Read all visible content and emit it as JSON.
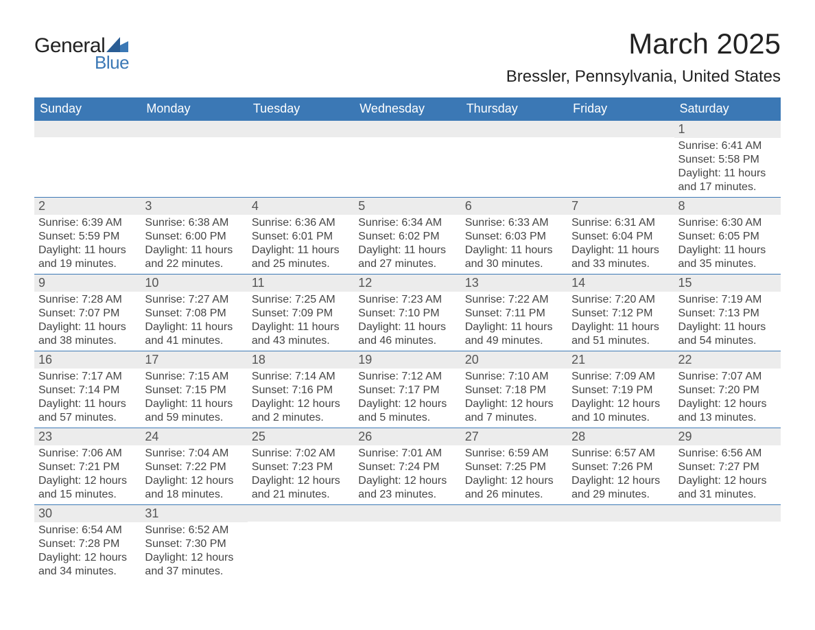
{
  "logo": {
    "main": "General",
    "sub": "Blue"
  },
  "title": "March 2025",
  "location": "Bressler, Pennsylvania, United States",
  "colors": {
    "header_bg": "#3b78b5",
    "header_text": "#ffffff",
    "strip_bg": "#ececec",
    "border": "#3b78b5",
    "body_text": "#444444",
    "logo_accent": "#3b78b5"
  },
  "weekdays": [
    "Sunday",
    "Monday",
    "Tuesday",
    "Wednesday",
    "Thursday",
    "Friday",
    "Saturday"
  ],
  "weeks": [
    [
      {
        "day": "",
        "sunrise": "",
        "sunset": "",
        "daylight": ""
      },
      {
        "day": "",
        "sunrise": "",
        "sunset": "",
        "daylight": ""
      },
      {
        "day": "",
        "sunrise": "",
        "sunset": "",
        "daylight": ""
      },
      {
        "day": "",
        "sunrise": "",
        "sunset": "",
        "daylight": ""
      },
      {
        "day": "",
        "sunrise": "",
        "sunset": "",
        "daylight": ""
      },
      {
        "day": "",
        "sunrise": "",
        "sunset": "",
        "daylight": ""
      },
      {
        "day": "1",
        "sunrise": "Sunrise: 6:41 AM",
        "sunset": "Sunset: 5:58 PM",
        "daylight": "Daylight: 11 hours and 17 minutes."
      }
    ],
    [
      {
        "day": "2",
        "sunrise": "Sunrise: 6:39 AM",
        "sunset": "Sunset: 5:59 PM",
        "daylight": "Daylight: 11 hours and 19 minutes."
      },
      {
        "day": "3",
        "sunrise": "Sunrise: 6:38 AM",
        "sunset": "Sunset: 6:00 PM",
        "daylight": "Daylight: 11 hours and 22 minutes."
      },
      {
        "day": "4",
        "sunrise": "Sunrise: 6:36 AM",
        "sunset": "Sunset: 6:01 PM",
        "daylight": "Daylight: 11 hours and 25 minutes."
      },
      {
        "day": "5",
        "sunrise": "Sunrise: 6:34 AM",
        "sunset": "Sunset: 6:02 PM",
        "daylight": "Daylight: 11 hours and 27 minutes."
      },
      {
        "day": "6",
        "sunrise": "Sunrise: 6:33 AM",
        "sunset": "Sunset: 6:03 PM",
        "daylight": "Daylight: 11 hours and 30 minutes."
      },
      {
        "day": "7",
        "sunrise": "Sunrise: 6:31 AM",
        "sunset": "Sunset: 6:04 PM",
        "daylight": "Daylight: 11 hours and 33 minutes."
      },
      {
        "day": "8",
        "sunrise": "Sunrise: 6:30 AM",
        "sunset": "Sunset: 6:05 PM",
        "daylight": "Daylight: 11 hours and 35 minutes."
      }
    ],
    [
      {
        "day": "9",
        "sunrise": "Sunrise: 7:28 AM",
        "sunset": "Sunset: 7:07 PM",
        "daylight": "Daylight: 11 hours and 38 minutes."
      },
      {
        "day": "10",
        "sunrise": "Sunrise: 7:27 AM",
        "sunset": "Sunset: 7:08 PM",
        "daylight": "Daylight: 11 hours and 41 minutes."
      },
      {
        "day": "11",
        "sunrise": "Sunrise: 7:25 AM",
        "sunset": "Sunset: 7:09 PM",
        "daylight": "Daylight: 11 hours and 43 minutes."
      },
      {
        "day": "12",
        "sunrise": "Sunrise: 7:23 AM",
        "sunset": "Sunset: 7:10 PM",
        "daylight": "Daylight: 11 hours and 46 minutes."
      },
      {
        "day": "13",
        "sunrise": "Sunrise: 7:22 AM",
        "sunset": "Sunset: 7:11 PM",
        "daylight": "Daylight: 11 hours and 49 minutes."
      },
      {
        "day": "14",
        "sunrise": "Sunrise: 7:20 AM",
        "sunset": "Sunset: 7:12 PM",
        "daylight": "Daylight: 11 hours and 51 minutes."
      },
      {
        "day": "15",
        "sunrise": "Sunrise: 7:19 AM",
        "sunset": "Sunset: 7:13 PM",
        "daylight": "Daylight: 11 hours and 54 minutes."
      }
    ],
    [
      {
        "day": "16",
        "sunrise": "Sunrise: 7:17 AM",
        "sunset": "Sunset: 7:14 PM",
        "daylight": "Daylight: 11 hours and 57 minutes."
      },
      {
        "day": "17",
        "sunrise": "Sunrise: 7:15 AM",
        "sunset": "Sunset: 7:15 PM",
        "daylight": "Daylight: 11 hours and 59 minutes."
      },
      {
        "day": "18",
        "sunrise": "Sunrise: 7:14 AM",
        "sunset": "Sunset: 7:16 PM",
        "daylight": "Daylight: 12 hours and 2 minutes."
      },
      {
        "day": "19",
        "sunrise": "Sunrise: 7:12 AM",
        "sunset": "Sunset: 7:17 PM",
        "daylight": "Daylight: 12 hours and 5 minutes."
      },
      {
        "day": "20",
        "sunrise": "Sunrise: 7:10 AM",
        "sunset": "Sunset: 7:18 PM",
        "daylight": "Daylight: 12 hours and 7 minutes."
      },
      {
        "day": "21",
        "sunrise": "Sunrise: 7:09 AM",
        "sunset": "Sunset: 7:19 PM",
        "daylight": "Daylight: 12 hours and 10 minutes."
      },
      {
        "day": "22",
        "sunrise": "Sunrise: 7:07 AM",
        "sunset": "Sunset: 7:20 PM",
        "daylight": "Daylight: 12 hours and 13 minutes."
      }
    ],
    [
      {
        "day": "23",
        "sunrise": "Sunrise: 7:06 AM",
        "sunset": "Sunset: 7:21 PM",
        "daylight": "Daylight: 12 hours and 15 minutes."
      },
      {
        "day": "24",
        "sunrise": "Sunrise: 7:04 AM",
        "sunset": "Sunset: 7:22 PM",
        "daylight": "Daylight: 12 hours and 18 minutes."
      },
      {
        "day": "25",
        "sunrise": "Sunrise: 7:02 AM",
        "sunset": "Sunset: 7:23 PM",
        "daylight": "Daylight: 12 hours and 21 minutes."
      },
      {
        "day": "26",
        "sunrise": "Sunrise: 7:01 AM",
        "sunset": "Sunset: 7:24 PM",
        "daylight": "Daylight: 12 hours and 23 minutes."
      },
      {
        "day": "27",
        "sunrise": "Sunrise: 6:59 AM",
        "sunset": "Sunset: 7:25 PM",
        "daylight": "Daylight: 12 hours and 26 minutes."
      },
      {
        "day": "28",
        "sunrise": "Sunrise: 6:57 AM",
        "sunset": "Sunset: 7:26 PM",
        "daylight": "Daylight: 12 hours and 29 minutes."
      },
      {
        "day": "29",
        "sunrise": "Sunrise: 6:56 AM",
        "sunset": "Sunset: 7:27 PM",
        "daylight": "Daylight: 12 hours and 31 minutes."
      }
    ],
    [
      {
        "day": "30",
        "sunrise": "Sunrise: 6:54 AM",
        "sunset": "Sunset: 7:28 PM",
        "daylight": "Daylight: 12 hours and 34 minutes."
      },
      {
        "day": "31",
        "sunrise": "Sunrise: 6:52 AM",
        "sunset": "Sunset: 7:30 PM",
        "daylight": "Daylight: 12 hours and 37 minutes."
      },
      {
        "day": "",
        "sunrise": "",
        "sunset": "",
        "daylight": ""
      },
      {
        "day": "",
        "sunrise": "",
        "sunset": "",
        "daylight": ""
      },
      {
        "day": "",
        "sunrise": "",
        "sunset": "",
        "daylight": ""
      },
      {
        "day": "",
        "sunrise": "",
        "sunset": "",
        "daylight": ""
      },
      {
        "day": "",
        "sunrise": "",
        "sunset": "",
        "daylight": ""
      }
    ]
  ]
}
